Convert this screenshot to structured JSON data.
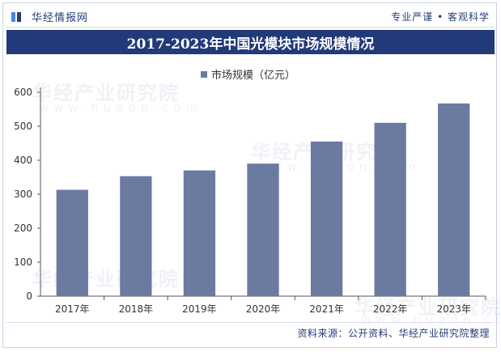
{
  "header": {
    "brand_name": "华经情报网",
    "tagline": "专业严谨 • 客观科学"
  },
  "colors": {
    "title_bar": "#223a79",
    "bar": "#6b7aa1",
    "brand": "#243c78"
  },
  "watermark": {
    "text": "华经产业研究院",
    "url_text": "www.huaon.com"
  },
  "chart_data": {
    "type": "bar",
    "title": "2017-2023年中国光模块市场规模情况",
    "categories": [
      "2017年",
      "2018年",
      "2019年",
      "2020年",
      "2021年",
      "2022年",
      "2023年"
    ],
    "series": [
      {
        "name": "市场规模（亿元）",
        "values": [
          313,
          353,
          370,
          390,
          455,
          510,
          567
        ]
      }
    ],
    "ylim": [
      0,
      600
    ],
    "yticks": [
      0,
      100,
      200,
      300,
      400,
      500,
      600
    ],
    "grid": false,
    "legend_position": "top-center",
    "xlabel": "",
    "ylabel": ""
  },
  "footer": {
    "source": "资料来源：公开资料、华经产业研究院整理"
  }
}
